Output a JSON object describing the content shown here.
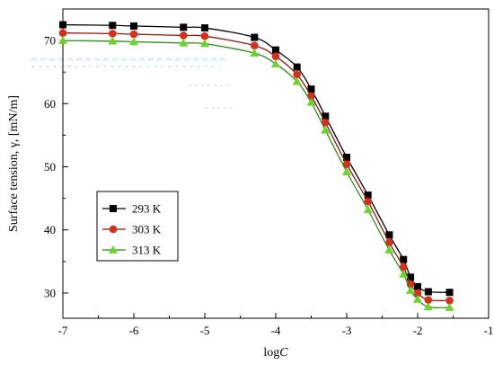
{
  "chart_data": {
    "type": "line",
    "title": "",
    "xlabel_prefix": "log",
    "xlabel_var": "C",
    "ylabel": "Surface tension, γ, [mN/m]",
    "xlim": [
      -7,
      -1
    ],
    "ylim": [
      26,
      75
    ],
    "xticks": [
      -7,
      -6,
      -5,
      -4,
      -3,
      -2,
      -1
    ],
    "yticks": [
      30,
      40,
      50,
      60,
      70
    ],
    "xtick_labels": [
      "-7",
      "-6",
      "-5",
      "-4",
      "-3",
      "-2",
      "-1"
    ],
    "ytick_labels": [
      "30",
      "40",
      "50",
      "60",
      "70"
    ],
    "grid": false,
    "legend_position": "lower-left",
    "series": [
      {
        "name": "293 K",
        "marker": "square",
        "color": "#000000",
        "marker_color": "#000000",
        "x": [
          -7,
          -6.3,
          -6,
          -5.3,
          -5,
          -4.3,
          -4,
          -3.7,
          -3.5,
          -3.3,
          -3,
          -2.7,
          -2.4,
          -2.2,
          -2.1,
          -2,
          -1.85,
          -1.55
        ],
        "y": [
          72.5,
          72.4,
          72.3,
          72.1,
          72.0,
          70.5,
          68.5,
          65.8,
          62.3,
          58.0,
          51.5,
          45.5,
          39.2,
          35.3,
          32.5,
          31.0,
          30.2,
          30.1
        ]
      },
      {
        "name": "303 K",
        "marker": "circle",
        "color": "#8b1a10",
        "marker_color": "#d4301c",
        "x": [
          -7,
          -6.3,
          -6,
          -5.3,
          -5,
          -4.3,
          -4,
          -3.7,
          -3.5,
          -3.3,
          -3,
          -2.7,
          -2.4,
          -2.2,
          -2.1,
          -2,
          -1.85,
          -1.55
        ],
        "y": [
          71.2,
          71.1,
          71.0,
          70.8,
          70.7,
          69.2,
          67.5,
          64.6,
          61.2,
          57.0,
          50.4,
          44.5,
          38.0,
          34.1,
          31.4,
          30.0,
          28.9,
          28.8
        ]
      },
      {
        "name": "313 K",
        "marker": "triangle",
        "color": "#2e8b1c",
        "marker_color": "#6ad42c",
        "x": [
          -7,
          -6.3,
          -6,
          -5.3,
          -5,
          -4.3,
          -4,
          -3.7,
          -3.5,
          -3.3,
          -3,
          -2.7,
          -2.4,
          -2.2,
          -2.1,
          -2,
          -1.85,
          -1.55
        ],
        "y": [
          70.0,
          69.9,
          69.8,
          69.6,
          69.5,
          68.0,
          66.3,
          63.5,
          60.2,
          55.8,
          49.2,
          43.2,
          36.8,
          33.0,
          30.4,
          29.0,
          27.8,
          27.7
        ]
      }
    ]
  }
}
